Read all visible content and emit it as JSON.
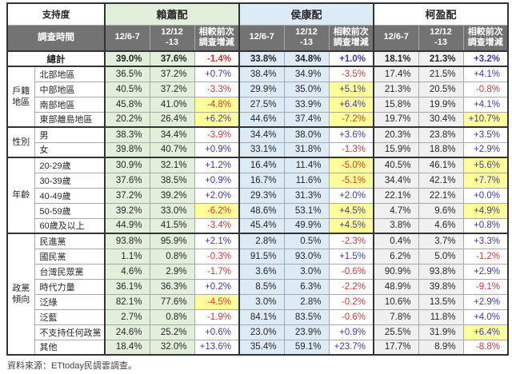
{
  "chart_data": {
    "type": "table",
    "header": {
      "support_label": "支持度",
      "time_label": "調查時間",
      "candidates": [
        "賴蕭配",
        "侯康配",
        "柯盈配"
      ],
      "subcolumns": [
        "12/6-7",
        "12/12\n-13",
        "相較前次\n調查增減"
      ]
    },
    "total_row": {
      "label": "總計",
      "values": [
        "39.0%",
        "37.6%",
        "-1.4%",
        "33.8%",
        "34.8%",
        "+1.0%",
        "18.1%",
        "21.3%",
        "+3.2%"
      ],
      "highlights": [
        false,
        false,
        false
      ]
    },
    "groups": [
      {
        "label": "戶籍地區",
        "rows": [
          {
            "label": "北部地區",
            "values": [
              "36.5%",
              "37.2%",
              "+0.7%",
              "38.4%",
              "34.9%",
              "-3.5%",
              "17.4%",
              "21.5%",
              "+4.1%"
            ],
            "highlights": [
              false,
              false,
              false
            ]
          },
          {
            "label": "中部地區",
            "values": [
              "40.5%",
              "37.2%",
              "-3.3%",
              "29.9%",
              "35.0%",
              "+5.1%",
              "21.3%",
              "20.5%",
              "-0.8%"
            ],
            "highlights": [
              false,
              true,
              false
            ]
          },
          {
            "label": "南部地區",
            "values": [
              "45.8%",
              "41.0%",
              "-4.8%",
              "27.5%",
              "33.9%",
              "+6.4%",
              "15.8%",
              "19.9%",
              "+4.1%"
            ],
            "highlights": [
              true,
              true,
              false
            ]
          },
          {
            "label": "東部離島地區",
            "values": [
              "20.2%",
              "26.4%",
              "+6.2%",
              "44.6%",
              "37.4%",
              "-7.2%",
              "19.7%",
              "30.4%",
              "+10.7%"
            ],
            "highlights": [
              true,
              true,
              true
            ]
          }
        ]
      },
      {
        "label": "性別",
        "rows": [
          {
            "label": "男",
            "values": [
              "38.3%",
              "34.4%",
              "-3.9%",
              "34.4%",
              "38.0%",
              "+3.6%",
              "20.3%",
              "23.8%",
              "+3.5%"
            ],
            "highlights": [
              false,
              false,
              false
            ]
          },
          {
            "label": "女",
            "values": [
              "39.8%",
              "40.7%",
              "+0.9%",
              "33.1%",
              "31.8%",
              "-1.3%",
              "15.9%",
              "18.8%",
              "+2.9%"
            ],
            "highlights": [
              false,
              false,
              false
            ]
          }
        ]
      },
      {
        "label": "年齡",
        "rows": [
          {
            "label": "20-29歲",
            "values": [
              "30.9%",
              "32.1%",
              "+1.2%",
              "16.4%",
              "11.4%",
              "-5.0%",
              "40.5%",
              "46.1%",
              "+5.6%"
            ],
            "highlights": [
              false,
              true,
              true
            ]
          },
          {
            "label": "30-39歲",
            "values": [
              "37.6%",
              "38.5%",
              "+0.9%",
              "16.7%",
              "11.6%",
              "-5.1%",
              "34.4%",
              "42.1%",
              "+7.7%"
            ],
            "highlights": [
              false,
              true,
              true
            ]
          },
          {
            "label": "40-49歲",
            "values": [
              "37.2%",
              "39.2%",
              "+2.0%",
              "29.3%",
              "31.3%",
              "+2.0%",
              "22.1%",
              "22.1%",
              "+0.0%"
            ],
            "highlights": [
              false,
              false,
              false
            ]
          },
          {
            "label": "50-59歲",
            "values": [
              "39.2%",
              "33.0%",
              "-6.2%",
              "48.6%",
              "53.1%",
              "+4.5%",
              "4.7%",
              "9.6%",
              "+4.9%"
            ],
            "highlights": [
              true,
              true,
              true
            ]
          },
          {
            "label": "60歲及以上",
            "values": [
              "44.9%",
              "41.5%",
              "-3.4%",
              "45.4%",
              "49.9%",
              "+4.5%",
              "3.8%",
              "4.6%",
              "+0.8%"
            ],
            "highlights": [
              false,
              true,
              false
            ]
          }
        ]
      },
      {
        "label": "政黨傾向",
        "rows": [
          {
            "label": "民進黨",
            "values": [
              "93.8%",
              "95.9%",
              "+2.1%",
              "2.8%",
              "0.5%",
              "-2.3%",
              "0.4%",
              "3.7%",
              "+3.3%"
            ],
            "highlights": [
              false,
              false,
              false
            ]
          },
          {
            "label": "國民黨",
            "values": [
              "1.1%",
              "0.8%",
              "-0.3%",
              "91.5%",
              "93.0%",
              "+1.5%",
              "6.2%",
              "5.0%",
              "-1.2%"
            ],
            "highlights": [
              false,
              false,
              false
            ]
          },
          {
            "label": "台灣民眾黨",
            "values": [
              "4.6%",
              "2.9%",
              "-1.7%",
              "3.6%",
              "3.0%",
              "-0.6%",
              "90.9%",
              "93.8%",
              "+2.9%"
            ],
            "highlights": [
              false,
              false,
              false
            ]
          },
          {
            "label": "時代力量",
            "values": [
              "36.1%",
              "36.3%",
              "+0.2%",
              "8.5%",
              "6.3%",
              "-2.2%",
              "48.9%",
              "39.8%",
              "-9.1%"
            ],
            "highlights": [
              false,
              false,
              false
            ]
          },
          {
            "label": "泛綠",
            "values": [
              "82.1%",
              "77.6%",
              "-4.5%",
              "3.0%",
              "2.8%",
              "-0.2%",
              "10.6%",
              "13.5%",
              "+2.9%"
            ],
            "highlights": [
              true,
              false,
              false
            ]
          },
          {
            "label": "泛藍",
            "values": [
              "2.7%",
              "0.8%",
              "-1.9%",
              "84.1%",
              "83.5%",
              "-0.6%",
              "7.8%",
              "11.8%",
              "+4.0%"
            ],
            "highlights": [
              false,
              false,
              false
            ]
          },
          {
            "label": "不支持任何政黨",
            "values": [
              "24.6%",
              "25.2%",
              "+0.6%",
              "23.0%",
              "23.9%",
              "+0.9%",
              "25.5%",
              "31.9%",
              "+6.4%"
            ],
            "highlights": [
              false,
              false,
              true
            ]
          },
          {
            "label": "其他",
            "values": [
              "18.4%",
              "32.0%",
              "+13.6%",
              "35.4%",
              "59.1%",
              "+23.7%",
              "17.7%",
              "8.9%",
              "-8.8%"
            ],
            "highlights": [
              false,
              false,
              false
            ]
          }
        ]
      }
    ]
  },
  "footer": {
    "source": "資料來源：ETtoday民調雲調查。"
  },
  "colors": {
    "lai_block_bg": "#e2efda",
    "hou_block_bg": "#ddebf7",
    "ko_block_bg": "#f0f0f0",
    "header_dark_bg": "#737373",
    "highlight_yellow": "#ffff99",
    "positive_text": "#3a35c8",
    "negative_text": "#e03131"
  }
}
